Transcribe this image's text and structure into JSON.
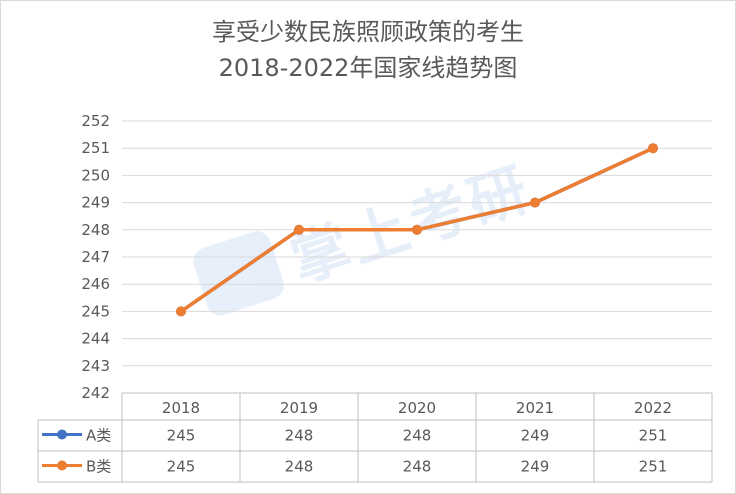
{
  "chart": {
    "title_line1": "享受少数民族照顾政策的考生",
    "title_line2": "2018-2022年国家线趋势图",
    "watermark_text": "掌上考研"
  },
  "chart_data": {
    "type": "line",
    "title": "享受少数民族照顾政策的考生 2018-2022年国家线趋势图",
    "categories": [
      "2018",
      "2019",
      "2020",
      "2021",
      "2022"
    ],
    "series": [
      {
        "name": "A类",
        "color": "#4472c4",
        "values": [
          245,
          248,
          248,
          249,
          251
        ]
      },
      {
        "name": "B类",
        "color": "#ed7d31",
        "values": [
          245,
          248,
          248,
          249,
          251
        ]
      }
    ],
    "ylim": [
      242,
      252
    ],
    "yticks": [
      242,
      243,
      244,
      245,
      246,
      247,
      248,
      249,
      250,
      251,
      252
    ],
    "grid": true,
    "legend": "data-table",
    "data_table": true
  }
}
